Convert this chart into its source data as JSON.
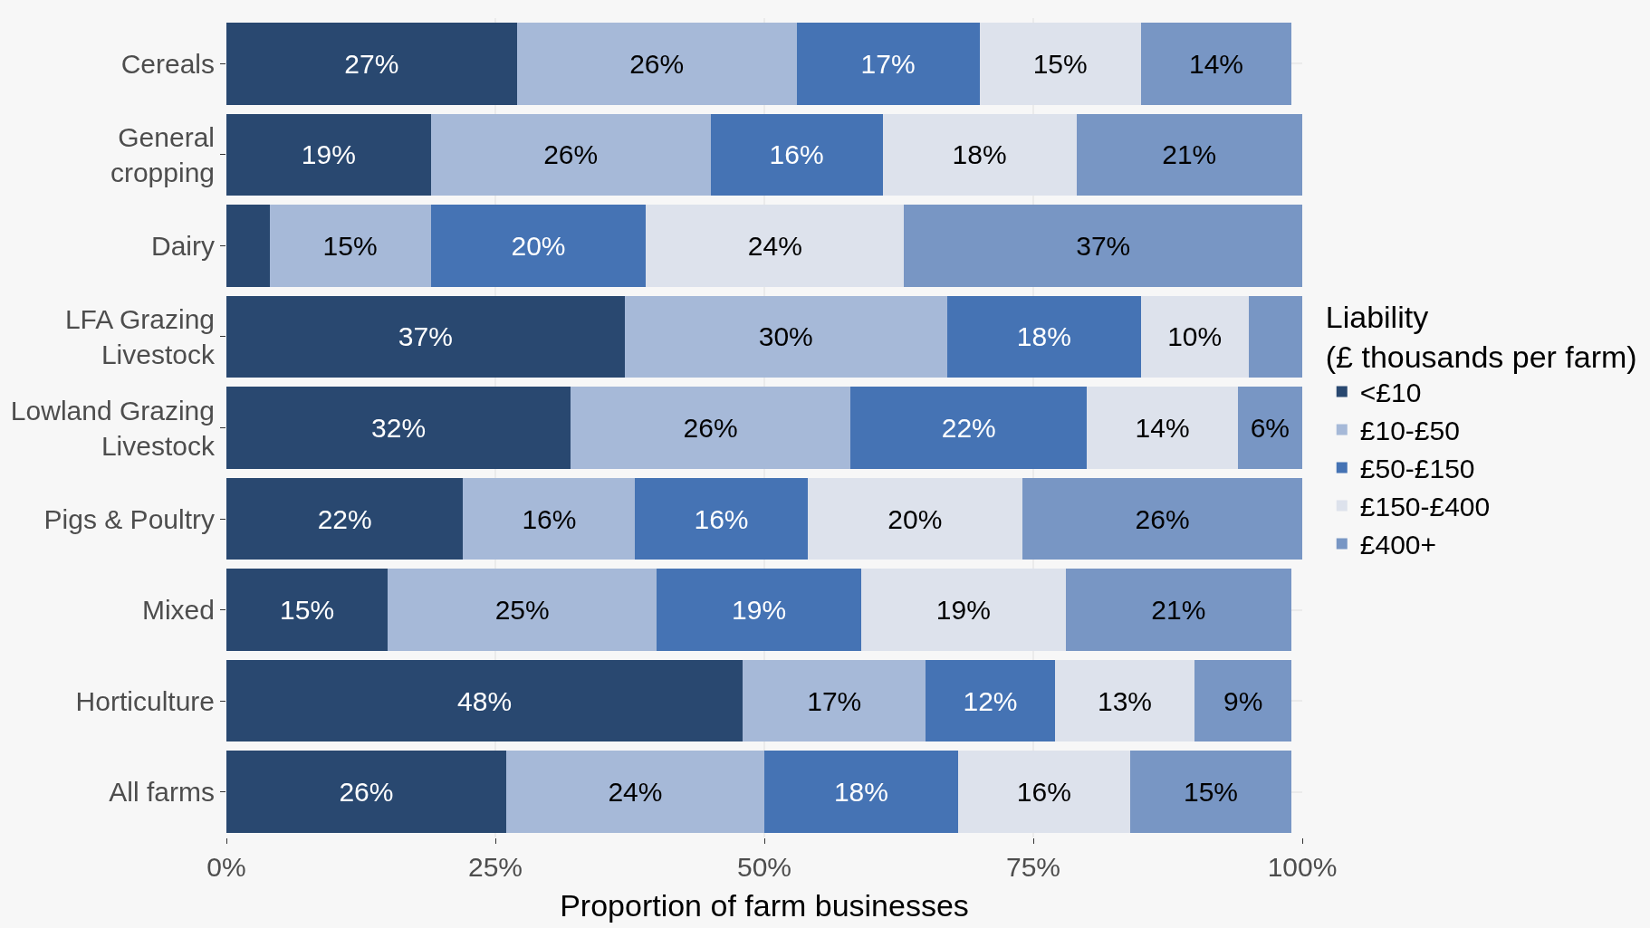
{
  "chart_data": {
    "type": "bar",
    "orientation": "horizontal",
    "stacked": true,
    "xlabel": "Proportion of farm businesses",
    "legend_title": "Liability\n(£ thousands per farm)",
    "categories": [
      "Cereals",
      "General\ncropping",
      "Dairy",
      "LFA Grazing\nLivestock",
      "Lowland Grazing\nLivestock",
      "Pigs & Poultry",
      "Mixed",
      "Horticulture",
      "All farms"
    ],
    "series": [
      {
        "name": "<£10",
        "color": "#294870",
        "values": [
          27,
          19,
          4,
          37,
          32,
          22,
          15,
          48,
          26
        ],
        "value_labels": [
          "27%",
          "19%",
          null,
          "37%",
          "32%",
          "22%",
          "15%",
          "48%",
          "26%"
        ]
      },
      {
        "name": "£10-£50",
        "color": "#a6b9d8",
        "values": [
          26,
          26,
          15,
          30,
          26,
          16,
          25,
          17,
          24
        ],
        "value_labels": [
          "26%",
          "26%",
          "15%",
          "30%",
          "26%",
          "16%",
          "25%",
          "17%",
          "24%"
        ]
      },
      {
        "name": "£50-£150",
        "color": "#4573b4",
        "values": [
          17,
          16,
          20,
          18,
          22,
          16,
          19,
          12,
          18
        ],
        "value_labels": [
          "17%",
          "16%",
          "20%",
          "18%",
          "22%",
          "16%",
          "19%",
          "12%",
          "18%"
        ]
      },
      {
        "name": "£150-£400",
        "color": "#dde2ec",
        "values": [
          15,
          18,
          24,
          10,
          14,
          20,
          19,
          13,
          16
        ],
        "value_labels": [
          "15%",
          "18%",
          "24%",
          "10%",
          "14%",
          "20%",
          "19%",
          "13%",
          "16%"
        ]
      },
      {
        "name": "£400+",
        "color": "#7896c4",
        "values": [
          14,
          21,
          37,
          5,
          6,
          26,
          21,
          9,
          15
        ],
        "value_labels": [
          "14%",
          "21%",
          "37%",
          null,
          "6%",
          "26%",
          "21%",
          "9%",
          "15%"
        ]
      }
    ],
    "xlim": [
      0,
      100
    ],
    "xticks": [
      {
        "value": 0,
        "label": "0%"
      },
      {
        "value": 25,
        "label": "25%"
      },
      {
        "value": 50,
        "label": "50%"
      },
      {
        "value": 75,
        "label": "75%"
      },
      {
        "value": 100,
        "label": "100%"
      }
    ],
    "grid": true,
    "legend": "right"
  }
}
